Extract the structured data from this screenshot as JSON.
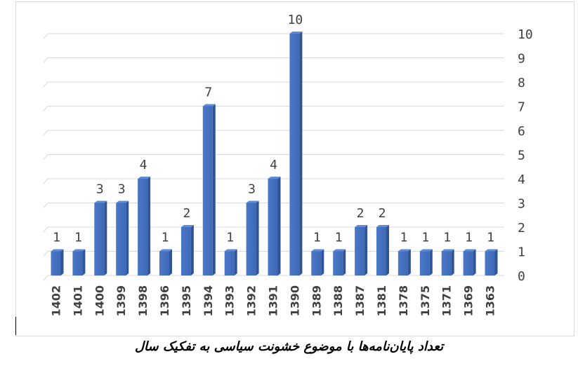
{
  "caption": "تعداد پایان‌نامه‌ها با موضوع خشونت سیاسی به تفکیک سال",
  "chart_data": {
    "type": "bar",
    "categories": [
      "1402",
      "1401",
      "1400",
      "1399",
      "1398",
      "1396",
      "1395",
      "1394",
      "1393",
      "1392",
      "1391",
      "1390",
      "1389",
      "1388",
      "1387",
      "1381",
      "1378",
      "1375",
      "1371",
      "1369",
      "1363"
    ],
    "values": [
      1,
      1,
      3,
      3,
      4,
      1,
      2,
      7,
      1,
      3,
      4,
      10,
      1,
      1,
      2,
      2,
      1,
      1,
      1,
      1,
      1
    ],
    "ylim": [
      0,
      10
    ],
    "yticks": [
      0,
      1,
      2,
      3,
      4,
      5,
      6,
      7,
      8,
      9,
      10
    ],
    "y_axis_side": "right",
    "grid": true,
    "bar_color": "#4472c4",
    "data_labels": true,
    "title": "",
    "xlabel": "",
    "ylabel": ""
  }
}
